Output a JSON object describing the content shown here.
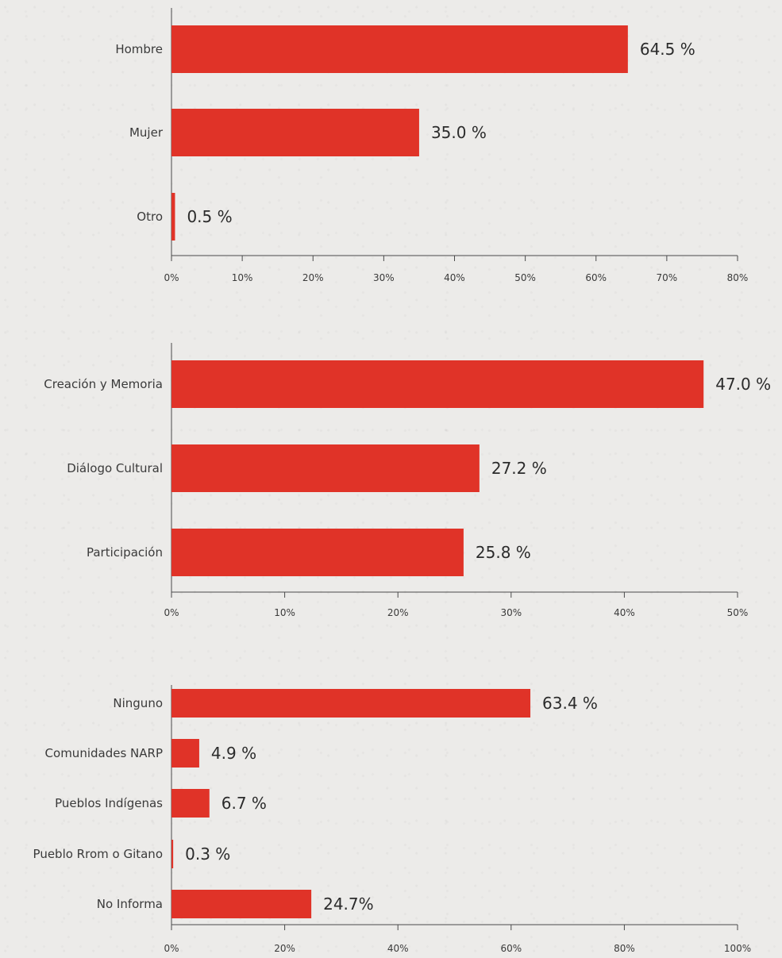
{
  "colors": {
    "bar": "#e03328",
    "axis": "#4a4a4a",
    "text": "#3a3a3a",
    "background": "#ecebe9"
  },
  "chart_data": [
    {
      "type": "bar",
      "orientation": "horizontal",
      "categories": [
        "Hombre",
        "Mujer",
        "Otro"
      ],
      "values": [
        64.5,
        35.0,
        0.5
      ],
      "value_labels": [
        "64.5 %",
        "35.0 %",
        "0.5 %"
      ],
      "xlim": [
        0,
        80
      ],
      "ticks": [
        "0%",
        "10%",
        "20%",
        "30%",
        "40%",
        "50%",
        "60%",
        "70%",
        "80%"
      ],
      "grid": false,
      "title": "",
      "xlabel": "",
      "ylabel": ""
    },
    {
      "type": "bar",
      "orientation": "horizontal",
      "categories": [
        "Creación y Memoria",
        "Diálogo Cultural",
        "Participación"
      ],
      "values": [
        47.0,
        27.2,
        25.8
      ],
      "value_labels": [
        "47.0 %",
        "27.2 %",
        "25.8 %"
      ],
      "xlim": [
        0,
        50
      ],
      "ticks": [
        "0%",
        "10%",
        "20%",
        "30%",
        "40%",
        "50%"
      ],
      "grid": false,
      "title": "",
      "xlabel": "",
      "ylabel": ""
    },
    {
      "type": "bar",
      "orientation": "horizontal",
      "categories": [
        "Ninguno",
        "Comunidades NARP",
        "Pueblos Indígenas",
        "Pueblo Rrom o Gitano",
        "No Informa"
      ],
      "values": [
        63.4,
        4.9,
        6.7,
        0.3,
        24.7
      ],
      "value_labels": [
        "63.4 %",
        "4.9 %",
        "6.7 %",
        "0.3 %",
        "24.7%"
      ],
      "xlim": [
        0,
        100
      ],
      "ticks": [
        "0%",
        "20%",
        "40%",
        "60%",
        "80%",
        "100%"
      ],
      "grid": false,
      "title": "",
      "xlabel": "",
      "ylabel": ""
    }
  ]
}
